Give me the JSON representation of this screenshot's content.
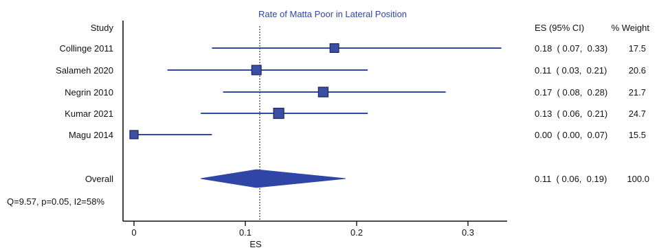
{
  "chart_data": {
    "type": "forest",
    "title": "Rate of Matta Poor in Lateral Position",
    "xlabel": "ES",
    "xlim": [
      -0.02,
      0.36
    ],
    "xticks": [
      0,
      0.1,
      0.2,
      0.3
    ],
    "xtick_labels": [
      "0",
      "0.1",
      "0.2",
      "0.3"
    ],
    "reference_line": 0.113,
    "columns": {
      "study": "Study",
      "es_ci": "ES (95% CI)",
      "weight": "% Weight"
    },
    "studies": [
      {
        "name": "Collinge 2011",
        "es": 0.18,
        "lo": 0.07,
        "hi": 0.33,
        "es_ci_text": "0.18  ( 0.07,  0.33)",
        "weight": 17.5,
        "weight_text": "17.5"
      },
      {
        "name": "Salameh 2020",
        "es": 0.11,
        "lo": 0.03,
        "hi": 0.21,
        "es_ci_text": "0.11  ( 0.03,  0.21)",
        "weight": 20.6,
        "weight_text": "20.6"
      },
      {
        "name": "Negrin 2010",
        "es": 0.17,
        "lo": 0.08,
        "hi": 0.28,
        "es_ci_text": "0.17  ( 0.08,  0.28)",
        "weight": 21.7,
        "weight_text": "21.7"
      },
      {
        "name": "Kumar 2021",
        "es": 0.13,
        "lo": 0.06,
        "hi": 0.21,
        "es_ci_text": "0.13  ( 0.06,  0.21)",
        "weight": 24.7,
        "weight_text": "24.7"
      },
      {
        "name": "Magu 2014",
        "es": 0.0,
        "lo": 0.0,
        "hi": 0.07,
        "es_ci_text": "0.00  ( 0.00,  0.07)",
        "weight": 15.5,
        "weight_text": "15.5"
      }
    ],
    "overall": {
      "name": "Overall",
      "es": 0.11,
      "lo": 0.06,
      "hi": 0.19,
      "es_ci_text": "0.11  ( 0.06,  0.19)",
      "weight_text": "100.0"
    },
    "heterogeneity": "Q=9.57, p=0.05, I2=58%",
    "colors": {
      "marker": "#3a4fa3",
      "marker_stroke": "#1b2560",
      "ci_line": "#3048a8",
      "diamond": "#2f46a6",
      "title": "#2f45a8",
      "axis": "#111111",
      "text": "#111111"
    }
  }
}
